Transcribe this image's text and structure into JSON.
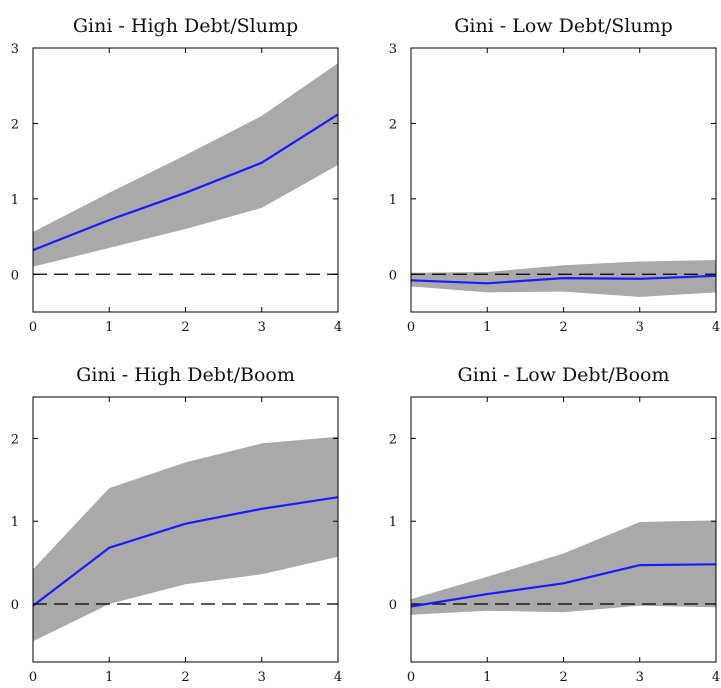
{
  "chart_data": [
    {
      "type": "line",
      "title": "Gini - High Debt/Slump",
      "xlabel": "",
      "ylabel": "",
      "x": [
        0,
        1,
        2,
        3,
        4
      ],
      "xlim": [
        0,
        4
      ],
      "ylim": [
        -0.5,
        3.0
      ],
      "yticks": [
        0,
        1,
        2,
        3
      ],
      "xticks": [
        0,
        1,
        2,
        3,
        4
      ],
      "series": [
        {
          "role": "estimate",
          "values": [
            0.32,
            0.72,
            1.08,
            1.48,
            2.12
          ]
        },
        {
          "role": "band_upper",
          "values": [
            0.56,
            1.08,
            1.58,
            2.1,
            2.8
          ]
        },
        {
          "role": "band_lower",
          "values": [
            0.1,
            0.35,
            0.6,
            0.88,
            1.45
          ]
        }
      ],
      "zero_line": true,
      "grid": false
    },
    {
      "type": "line",
      "title": "Gini - Low Debt/Slump",
      "xlabel": "",
      "ylabel": "",
      "x": [
        0,
        1,
        2,
        3,
        4
      ],
      "xlim": [
        0,
        4
      ],
      "ylim": [
        -0.5,
        3.0
      ],
      "yticks": [
        0,
        1,
        2,
        3
      ],
      "xticks": [
        0,
        1,
        2,
        3,
        4
      ],
      "series": [
        {
          "role": "estimate",
          "values": [
            -0.08,
            -0.12,
            -0.05,
            -0.06,
            -0.02
          ]
        },
        {
          "role": "band_upper",
          "values": [
            0.02,
            0.03,
            0.12,
            0.17,
            0.19
          ]
        },
        {
          "role": "band_lower",
          "values": [
            -0.16,
            -0.24,
            -0.23,
            -0.3,
            -0.24
          ]
        }
      ],
      "zero_line": true,
      "grid": false
    },
    {
      "type": "line",
      "title": "Gini - High Debt/Boom",
      "xlabel": "",
      "ylabel": "",
      "x": [
        0,
        1,
        2,
        3,
        4
      ],
      "xlim": [
        0,
        4
      ],
      "ylim": [
        -0.7,
        2.5
      ],
      "yticks": [
        0,
        1,
        2
      ],
      "xticks": [
        0,
        1,
        2,
        3,
        4
      ],
      "series": [
        {
          "role": "estimate",
          "values": [
            -0.02,
            0.68,
            0.97,
            1.15,
            1.29
          ]
        },
        {
          "role": "band_upper",
          "values": [
            0.42,
            1.4,
            1.71,
            1.94,
            2.02
          ]
        },
        {
          "role": "band_lower",
          "values": [
            -0.45,
            0.0,
            0.24,
            0.36,
            0.57
          ]
        }
      ],
      "zero_line": true,
      "grid": false
    },
    {
      "type": "line",
      "title": "Gini - Low Debt/Boom",
      "xlabel": "",
      "ylabel": "",
      "x": [
        0,
        1,
        2,
        3,
        4
      ],
      "xlim": [
        0,
        4
      ],
      "ylim": [
        -0.7,
        2.5
      ],
      "yticks": [
        0,
        1,
        2
      ],
      "xticks": [
        0,
        1,
        2,
        3,
        4
      ],
      "series": [
        {
          "role": "estimate",
          "values": [
            -0.03,
            0.12,
            0.25,
            0.47,
            0.48
          ]
        },
        {
          "role": "band_upper",
          "values": [
            0.06,
            0.33,
            0.61,
            0.99,
            1.01
          ]
        },
        {
          "role": "band_lower",
          "values": [
            -0.13,
            -0.08,
            -0.1,
            -0.02,
            -0.04
          ]
        }
      ],
      "zero_line": true,
      "grid": false
    }
  ],
  "colors": {
    "estimate_line": "#1a1aff",
    "band_fill": "#a9a9a9",
    "zero_line": "#000000",
    "axis": "#000000"
  }
}
